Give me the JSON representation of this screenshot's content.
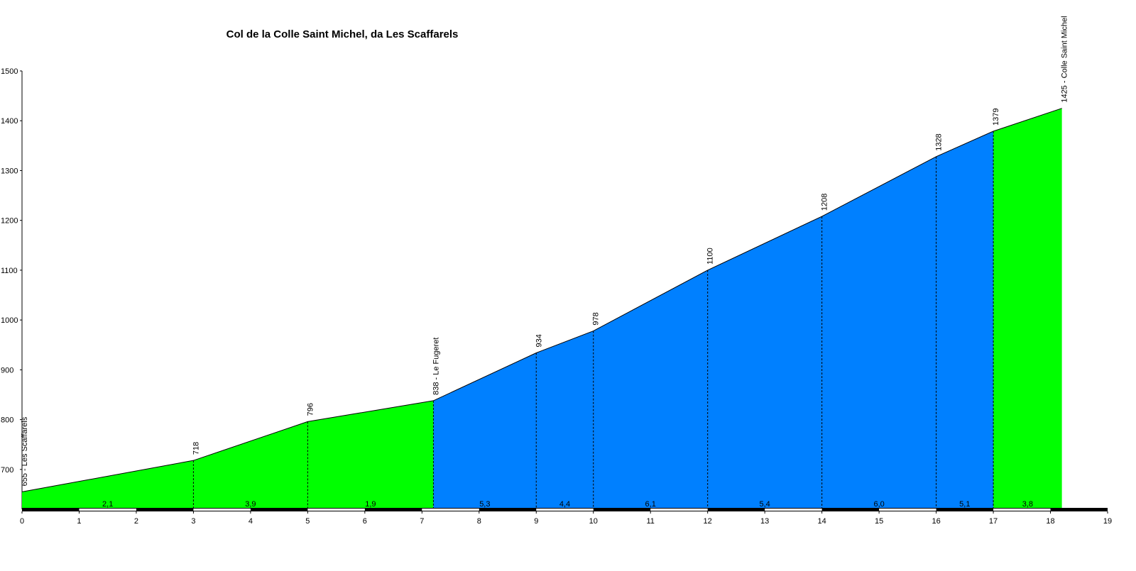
{
  "chart_data": {
    "type": "profile",
    "title": "Col de la Colle Saint Michel, da Les Scaffarels",
    "x": [
      0,
      3,
      5,
      7.2,
      9,
      10,
      12,
      14,
      16,
      17,
      18.2
    ],
    "values": [
      655,
      718,
      796,
      838,
      934,
      978,
      1100,
      1208,
      1328,
      1379,
      1425
    ],
    "value_labels": [
      "655 - Les Scaffarels",
      "718",
      "796",
      "838 - Le Fugeret",
      "934",
      "978",
      "1100",
      "1208",
      "1328",
      "1379",
      "1425 - Colle Saint Michel"
    ],
    "gradients": [
      2.1,
      3.9,
      1.9,
      5.3,
      4.4,
      6.1,
      5.4,
      6.0,
      5.1,
      3.8
    ],
    "gradient_labels": [
      "2,1",
      "3,9",
      "1,9",
      "5,3",
      "4,4",
      "6,1",
      "5,4",
      "6,0",
      "5,1",
      "3,8"
    ],
    "segment_colors": [
      "#00ff00",
      "#00ff00",
      "#00ff00",
      "#0080ff",
      "#0080ff",
      "#0080ff",
      "#0080ff",
      "#0080ff",
      "#0080ff",
      "#00ff00"
    ],
    "xlim": [
      0,
      19
    ],
    "xticks": [
      0,
      1,
      2,
      3,
      4,
      5,
      6,
      7,
      8,
      9,
      10,
      11,
      12,
      13,
      14,
      15,
      16,
      17,
      18,
      19
    ],
    "ylim": [
      620,
      1500
    ],
    "yticks": [
      700,
      800,
      900,
      1000,
      1100,
      1200,
      1300,
      1400,
      1500
    ]
  }
}
